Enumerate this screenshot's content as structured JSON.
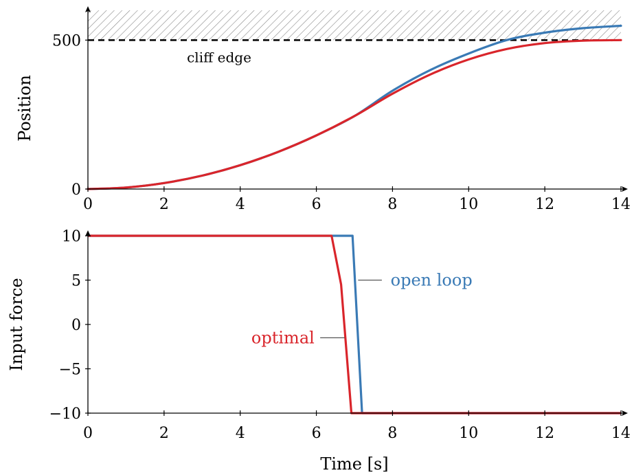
{
  "chart_data": [
    {
      "type": "line",
      "xlabel": "",
      "ylabel": "Position",
      "xlim": [
        0,
        14
      ],
      "ylim": [
        0,
        600
      ],
      "xticks": [
        "0",
        "2",
        "4",
        "6",
        "8",
        "10",
        "12",
        "14"
      ],
      "yticks": [
        "0",
        "500"
      ],
      "ytick_values": [
        0,
        500
      ],
      "constraint": {
        "y": 500,
        "label": "cliff edge",
        "hatched_region": [
          500,
          600
        ]
      },
      "series": [
        {
          "name": "open loop",
          "color": "#3a7ab5",
          "x": [
            0,
            1,
            2,
            3,
            4,
            5,
            6,
            7,
            8,
            9,
            10,
            11,
            12,
            13,
            14
          ],
          "values": [
            0,
            5,
            20,
            45,
            80,
            125,
            180,
            245,
            330,
            400,
            455,
            500,
            525,
            540,
            548
          ]
        },
        {
          "name": "optimal",
          "color": "#d9252b",
          "x": [
            0,
            1,
            2,
            3,
            4,
            5,
            6,
            7,
            8,
            9,
            10,
            11,
            12,
            13,
            14
          ],
          "values": [
            0,
            5,
            20,
            45,
            80,
            125,
            180,
            245,
            320,
            385,
            435,
            470,
            490,
            498,
            500
          ]
        }
      ]
    },
    {
      "type": "line",
      "xlabel": "Time [s]",
      "ylabel": "Input force",
      "xlim": [
        0,
        14
      ],
      "ylim": [
        -10,
        10
      ],
      "xticks": [
        "0",
        "2",
        "4",
        "6",
        "8",
        "10",
        "12",
        "14"
      ],
      "yticks": [
        "10",
        "5",
        "0",
        "−5",
        "−10"
      ],
      "ytick_values": [
        10,
        5,
        0,
        -5,
        -10
      ],
      "series": [
        {
          "name": "open loop",
          "color": "#3a7ab5",
          "x": [
            0,
            6.95,
            7.2,
            14
          ],
          "values": [
            10,
            10,
            -10,
            -10
          ]
        },
        {
          "name": "optimal",
          "color": "#d9252b",
          "x": [
            0,
            6.4,
            6.65,
            6.92,
            14
          ],
          "values": [
            10,
            10,
            4.5,
            -10,
            -10
          ]
        }
      ],
      "annotations": [
        {
          "series": "open loop",
          "text": "open loop"
        },
        {
          "series": "optimal",
          "text": "optimal"
        }
      ]
    }
  ]
}
